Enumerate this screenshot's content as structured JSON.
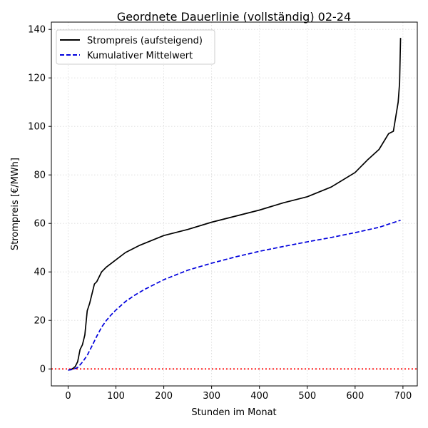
{
  "chart_data": {
    "type": "line",
    "title": "Geordnete Dauerlinie (vollständig) 02-24",
    "xlabel": "Stunden im Monat",
    "ylabel": "Strompreis [€/MWh]",
    "xlim": [
      -35,
      730
    ],
    "ylim": [
      -7,
      143
    ],
    "xticks": [
      0,
      100,
      200,
      300,
      400,
      500,
      600,
      700
    ],
    "yticks": [
      0,
      20,
      40,
      60,
      80,
      100,
      120,
      140
    ],
    "grid": true,
    "legend_position": "top-left",
    "reference_line": {
      "y": 0,
      "color": "#ff0000",
      "style": "dotted"
    },
    "series": [
      {
        "name": "Strompreis (aufsteigend)",
        "color": "#000000",
        "style": "solid",
        "x": [
          0,
          5,
          10,
          15,
          20,
          25,
          30,
          35,
          40,
          45,
          50,
          55,
          60,
          70,
          80,
          100,
          120,
          150,
          200,
          250,
          300,
          350,
          400,
          450,
          500,
          550,
          600,
          625,
          650,
          670,
          680,
          685,
          690,
          693,
          695
        ],
        "y": [
          -0.5,
          -0.3,
          0.2,
          1,
          3,
          8,
          10,
          14,
          24,
          27,
          31,
          35,
          36,
          40,
          42,
          45,
          48,
          51,
          55,
          57.5,
          60.5,
          63,
          65.5,
          68.5,
          71,
          75,
          81,
          86,
          90.5,
          97,
          98,
          104,
          110,
          118,
          136.5
        ]
      },
      {
        "name": "Kumulativer Mittelwert",
        "color": "#0000dd",
        "style": "dashed",
        "x": [
          0,
          10,
          20,
          30,
          40,
          50,
          60,
          70,
          80,
          90,
          100,
          120,
          140,
          160,
          180,
          200,
          250,
          300,
          350,
          400,
          450,
          500,
          550,
          600,
          650,
          695
        ],
        "y": [
          -0.5,
          -0.2,
          0.6,
          2.8,
          5.6,
          9.5,
          13.5,
          17.2,
          20.0,
          22.3,
          24.3,
          27.8,
          30.5,
          32.8,
          34.8,
          36.8,
          40.7,
          43.6,
          46.2,
          48.5,
          50.5,
          52.4,
          54.2,
          56.2,
          58.4,
          61.3
        ]
      }
    ]
  }
}
